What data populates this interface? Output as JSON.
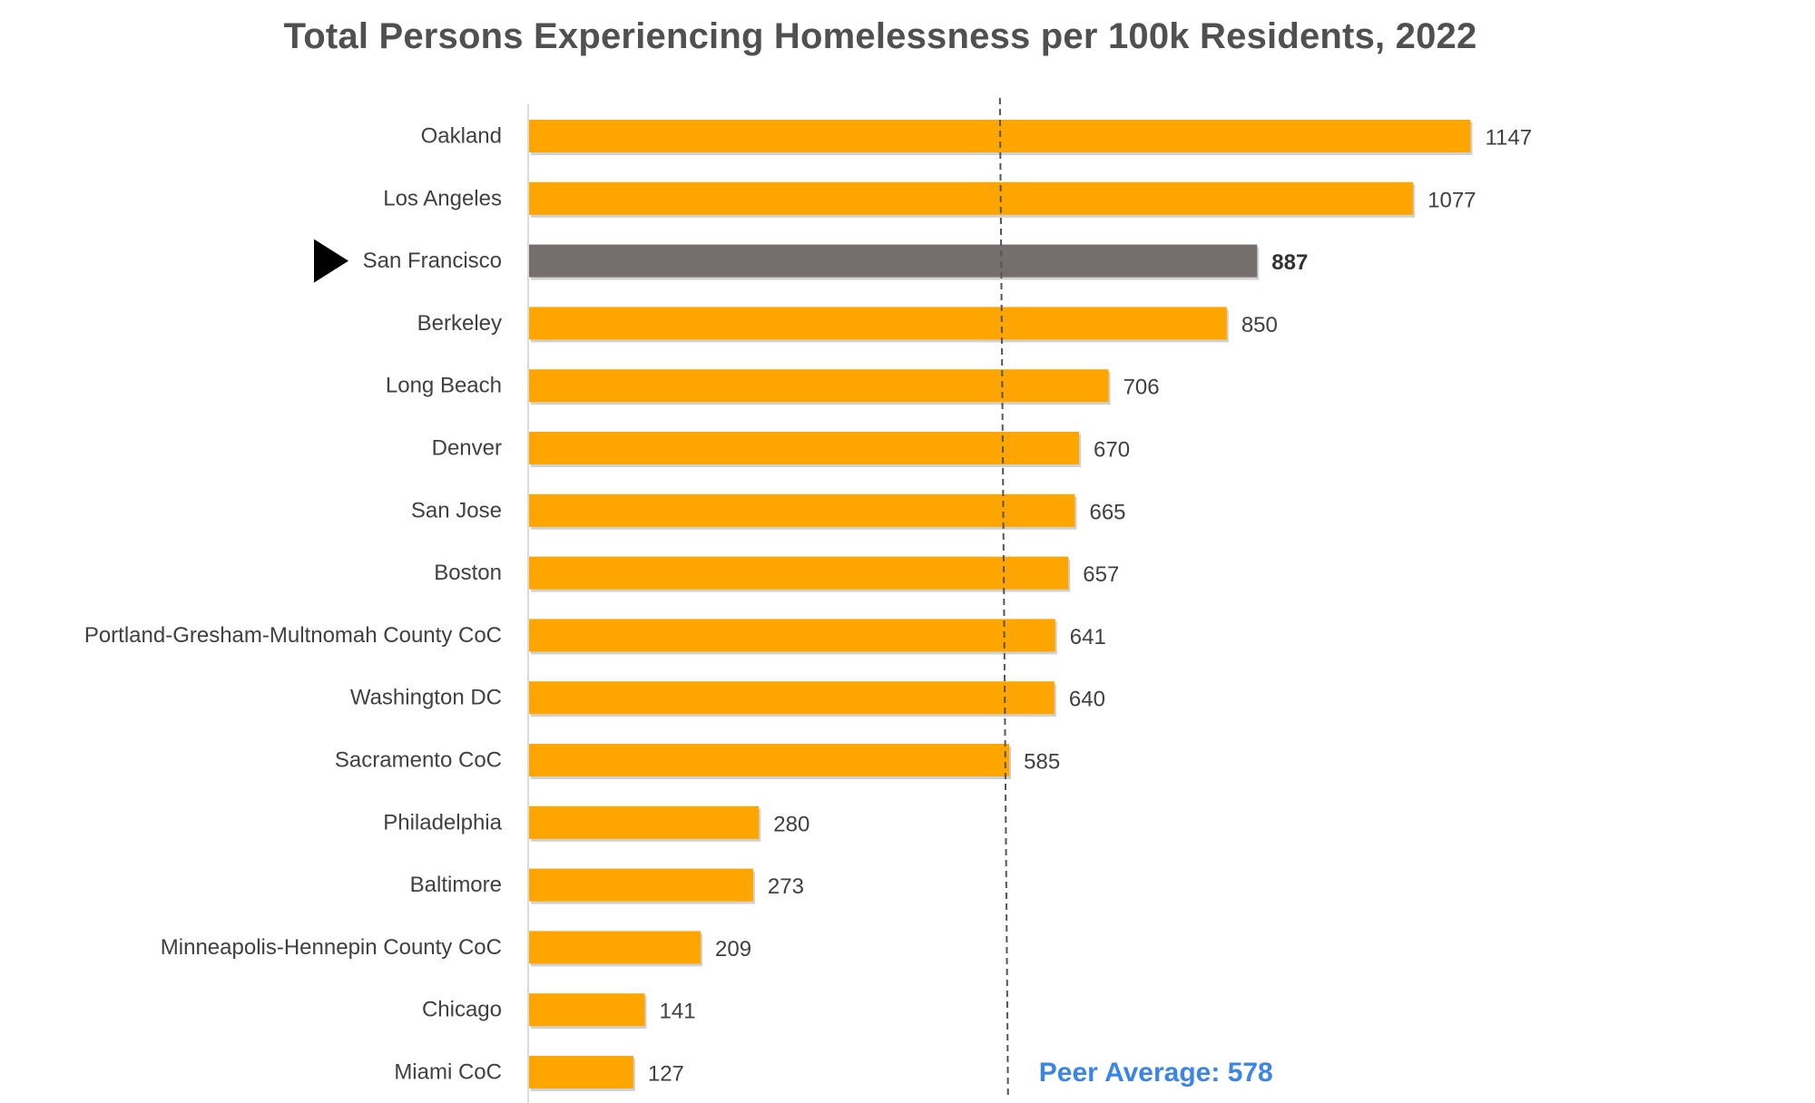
{
  "chart_data": {
    "type": "bar",
    "orientation": "horizontal",
    "title": "Total Persons Experiencing Homelessness per 100k Residents, 2022",
    "categories": [
      "Oakland",
      "Los Angeles",
      "San Francisco",
      "Berkeley",
      "Long Beach",
      "Denver",
      "San Jose",
      "Boston",
      "Portland-Gresham-Multnomah County CoC",
      "Washington DC",
      "Sacramento CoC",
      "Philadelphia",
      "Baltimore",
      "Minneapolis-Hennepin County CoC",
      "Chicago",
      "Miami  CoC"
    ],
    "values": [
      1147,
      1077,
      887,
      850,
      706,
      670,
      665,
      657,
      641,
      640,
      585,
      280,
      273,
      209,
      141,
      127
    ],
    "value_labels": [
      "1147",
      "1077",
      "887",
      "850",
      "706",
      "670",
      "665",
      "657",
      "641",
      "640",
      "585",
      "280",
      "273",
      "209",
      "141",
      "127"
    ],
    "highlight": "San Francisco",
    "reference_line": {
      "value": 578,
      "label": "Peer Average: 578",
      "style": "dashed"
    },
    "xlim": [
      0,
      1300
    ],
    "grid": false,
    "legend": "none",
    "colors": {
      "bar": "#FFA500",
      "highlight_bar": "#756E6C",
      "reference_line": "#555555",
      "reference_label": "#3A86E8",
      "marker": "#000000"
    }
  }
}
